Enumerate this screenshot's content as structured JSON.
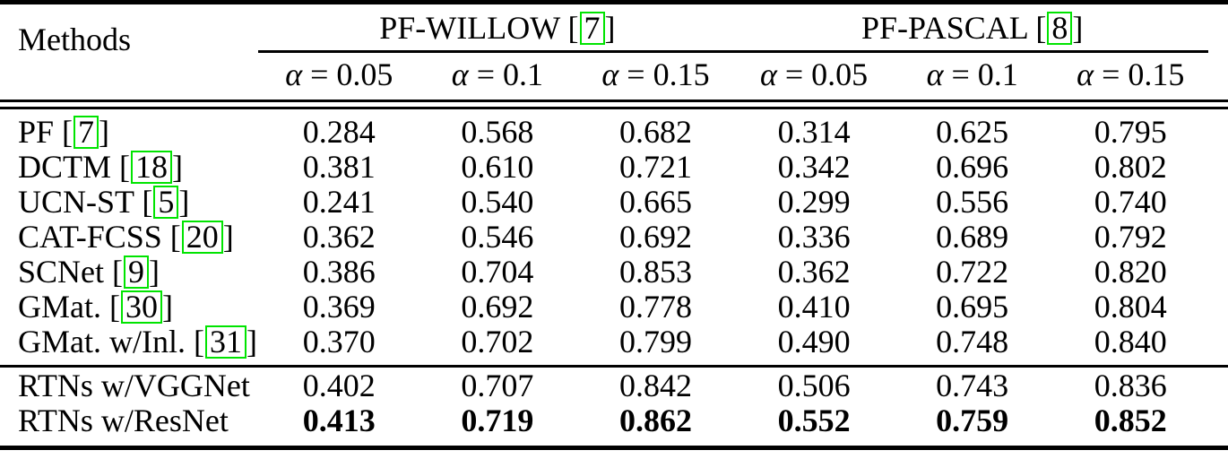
{
  "colors": {
    "citation_box": "#00e400",
    "text": "#000000",
    "background": "#ffffff"
  },
  "header": {
    "methods_label": "Methods",
    "groups": [
      {
        "name": "PF-WILLOW",
        "open": " [",
        "cite": "7",
        "close": "]"
      },
      {
        "name": "PF-PASCAL",
        "open": " [",
        "cite": "8",
        "close": "]"
      }
    ],
    "alpha_columns": [
      {
        "sym": "α",
        "rest": "= 0.05"
      },
      {
        "sym": "α",
        "rest": "= 0.1"
      },
      {
        "sym": "α",
        "rest": "= 0.15"
      },
      {
        "sym": "α",
        "rest": "= 0.05"
      },
      {
        "sym": "α",
        "rest": "= 0.1"
      },
      {
        "sym": "α",
        "rest": "= 0.15"
      }
    ]
  },
  "body": {
    "rows": [
      {
        "label": "PF",
        "open": " [",
        "cite": "7",
        "close": "]",
        "values": [
          "0.284",
          "0.568",
          "0.682",
          "0.314",
          "0.625",
          "0.795"
        ]
      },
      {
        "label": "DCTM",
        "open": " [",
        "cite": "18",
        "close": "]",
        "values": [
          "0.381",
          "0.610",
          "0.721",
          "0.342",
          "0.696",
          "0.802"
        ]
      },
      {
        "label": "UCN-ST",
        "open": " [",
        "cite": "5",
        "close": "]",
        "values": [
          "0.241",
          "0.540",
          "0.665",
          "0.299",
          "0.556",
          "0.740"
        ]
      },
      {
        "label": "CAT-FCSS",
        "open": " [",
        "cite": "20",
        "close": "]",
        "values": [
          "0.362",
          "0.546",
          "0.692",
          "0.336",
          "0.689",
          "0.792"
        ]
      },
      {
        "label": "SCNet",
        "open": " [",
        "cite": "9",
        "close": "]",
        "values": [
          "0.386",
          "0.704",
          "0.853",
          "0.362",
          "0.722",
          "0.820"
        ]
      },
      {
        "label": "GMat.",
        "open": " [",
        "cite": "30",
        "close": "]",
        "values": [
          "0.369",
          "0.692",
          "0.778",
          "0.410",
          "0.695",
          "0.804"
        ]
      },
      {
        "label": "GMat. w/Inl.",
        "open": " [",
        "cite": "31",
        "close": "]",
        "values": [
          "0.370",
          "0.702",
          "0.799",
          "0.490",
          "0.748",
          "0.840"
        ]
      }
    ]
  },
  "footer": {
    "rows": [
      {
        "label": "RTNs w/VGGNet",
        "bold": false,
        "values": [
          "0.402",
          "0.707",
          "0.842",
          "0.506",
          "0.743",
          "0.836"
        ]
      },
      {
        "label": "RTNs w/ResNet",
        "bold": true,
        "values": [
          "0.413",
          "0.719",
          "0.862",
          "0.552",
          "0.759",
          "0.852"
        ]
      }
    ]
  }
}
